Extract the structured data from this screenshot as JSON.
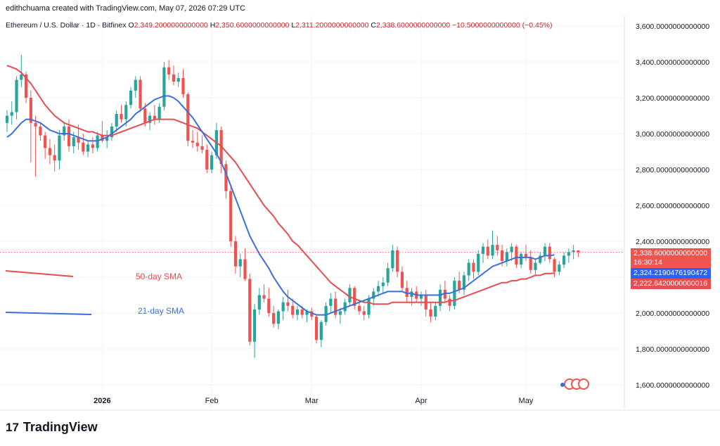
{
  "header": {
    "credit": "edithchuama created with TradingView.com, May 07, 2026 07:29 UTC",
    "symbol": "Ethereum / U.S. Dollar · 1D · Bitfinex",
    "o_label": "O",
    "o_value": "2,349.2000000000000",
    "h_label": "H",
    "h_value": "2,350.6000000000000",
    "l_label": "L",
    "l_value": "2,311.2000000000000",
    "c_label": "C",
    "c_value": "2,338.6000000000000",
    "change": "−10.5000000000000 (−0.45%)"
  },
  "annotations": {
    "sma50_label": "50-day SMA",
    "sma21_label": "21-day SMA"
  },
  "price_tags": {
    "last_price": "2,338.6000000000000",
    "countdown": "16:30:14",
    "sma21_value": "2,324.2190476190472",
    "sma50_value": "2,222.6420000000016"
  },
  "brand": {
    "logo": "17",
    "name": "TradingView"
  },
  "colors": {
    "up": "#26a69a",
    "down": "#ef5350",
    "sma21": "#3d6fd8",
    "sma50": "#e84b50",
    "axis_text": "#131722"
  },
  "chart_data": {
    "type": "candlestick",
    "ylim": [
      1560,
      3650
    ],
    "y_ticks": [
      "1,600.0000000000000",
      "1,800.0000000000000",
      "2,000.0000000000000",
      "2,200.0000000000000",
      "2,400.0000000000000",
      "2,600.0000000000000",
      "2,800.0000000000000",
      "3,000.0000000000000",
      "3,200.0000000000000",
      "3,400.0000000000000",
      "3,600.0000000000000"
    ],
    "x_ticks": [
      "2026",
      "Feb",
      "Mar",
      "Apr",
      "May"
    ],
    "candles": [
      [
        3060,
        3130,
        3010,
        3100
      ],
      [
        3100,
        3180,
        3050,
        3120
      ],
      [
        3120,
        3320,
        3080,
        3300
      ],
      [
        3300,
        3440,
        3260,
        3330
      ],
      [
        3330,
        3345,
        3170,
        3200
      ],
      [
        3200,
        3240,
        2840,
        3060
      ],
      [
        3060,
        3100,
        2760,
        3040
      ],
      [
        3040,
        3060,
        2960,
        2990
      ],
      [
        2990,
        3010,
        2860,
        2920
      ],
      [
        2920,
        2970,
        2830,
        2880
      ],
      [
        2880,
        2940,
        2790,
        2850
      ],
      [
        2850,
        3020,
        2800,
        2990
      ],
      [
        2990,
        3060,
        2960,
        3040
      ],
      [
        3040,
        3080,
        2900,
        2930
      ],
      [
        2930,
        3010,
        2890,
        2980
      ],
      [
        2980,
        3050,
        2910,
        2950
      ],
      [
        2950,
        3000,
        2880,
        2900
      ],
      [
        2900,
        2960,
        2870,
        2940
      ],
      [
        2940,
        2980,
        2890,
        2920
      ],
      [
        2920,
        3010,
        2900,
        2990
      ],
      [
        2990,
        3070,
        2950,
        2960
      ],
      [
        2960,
        3020,
        2920,
        2980
      ],
      [
        2980,
        3060,
        2960,
        3040
      ],
      [
        3040,
        3130,
        3010,
        3110
      ],
      [
        3110,
        3160,
        3060,
        3080
      ],
      [
        3080,
        3180,
        3040,
        3160
      ],
      [
        3160,
        3260,
        3140,
        3240
      ],
      [
        3240,
        3320,
        3200,
        3300
      ],
      [
        3300,
        3320,
        3120,
        3140
      ],
      [
        3140,
        3170,
        3040,
        3060
      ],
      [
        3060,
        3120,
        3020,
        3100
      ],
      [
        3100,
        3160,
        3050,
        3080
      ],
      [
        3080,
        3170,
        3060,
        3150
      ],
      [
        3150,
        3400,
        3130,
        3370
      ],
      [
        3370,
        3410,
        3300,
        3330
      ],
      [
        3330,
        3380,
        3270,
        3290
      ],
      [
        3290,
        3340,
        3260,
        3310
      ],
      [
        3310,
        3360,
        3200,
        3220
      ],
      [
        3220,
        3230,
        2930,
        2960
      ],
      [
        2960,
        3020,
        2920,
        2950
      ],
      [
        2950,
        3010,
        2900,
        2930
      ],
      [
        2930,
        2990,
        2890,
        2910
      ],
      [
        2910,
        2940,
        2780,
        2800
      ],
      [
        2800,
        2900,
        2780,
        2880
      ],
      [
        2880,
        3060,
        2860,
        3020
      ],
      [
        3020,
        3040,
        2780,
        2830
      ],
      [
        2830,
        2850,
        2640,
        2680
      ],
      [
        2680,
        2700,
        2370,
        2400
      ],
      [
        2400,
        2430,
        2220,
        2260
      ],
      [
        2260,
        2330,
        2200,
        2300
      ],
      [
        2300,
        2360,
        2180,
        2190
      ],
      [
        2190,
        2220,
        1820,
        1840
      ],
      [
        1840,
        2050,
        1750,
        2020
      ],
      [
        2020,
        2140,
        1990,
        2100
      ],
      [
        2100,
        2160,
        2060,
        2080
      ],
      [
        2080,
        2140,
        1980,
        2000
      ],
      [
        2000,
        2040,
        1920,
        1940
      ],
      [
        1940,
        2020,
        1910,
        2010
      ],
      [
        2010,
        2090,
        1960,
        2060
      ],
      [
        2060,
        2130,
        2010,
        2040
      ],
      [
        2040,
        2080,
        1970,
        1990
      ],
      [
        1990,
        2040,
        1960,
        2020
      ],
      [
        2020,
        2040,
        1970,
        1990
      ],
      [
        1990,
        2020,
        1950,
        2010
      ],
      [
        2010,
        2030,
        1960,
        1980
      ],
      [
        1980,
        1990,
        1830,
        1850
      ],
      [
        1850,
        1960,
        1810,
        1950
      ],
      [
        1950,
        2060,
        1930,
        2040
      ],
      [
        2040,
        2110,
        2000,
        2080
      ],
      [
        2080,
        2120,
        1970,
        1990
      ],
      [
        1990,
        2030,
        1940,
        2010
      ],
      [
        2010,
        2080,
        1990,
        2060
      ],
      [
        2060,
        2160,
        2040,
        2140
      ],
      [
        2140,
        2150,
        2020,
        2040
      ],
      [
        2040,
        2070,
        1990,
        2010
      ],
      [
        2010,
        2040,
        1960,
        1990
      ],
      [
        1990,
        2100,
        1970,
        2080
      ],
      [
        2080,
        2140,
        2040,
        2120
      ],
      [
        2120,
        2180,
        2090,
        2150
      ],
      [
        2150,
        2200,
        2110,
        2170
      ],
      [
        2170,
        2280,
        2150,
        2250
      ],
      [
        2250,
        2380,
        2230,
        2350
      ],
      [
        2350,
        2370,
        2200,
        2230
      ],
      [
        2230,
        2260,
        2120,
        2140
      ],
      [
        2140,
        2180,
        2060,
        2090
      ],
      [
        2090,
        2140,
        2040,
        2120
      ],
      [
        2120,
        2150,
        2060,
        2080
      ],
      [
        2080,
        2120,
        2040,
        2100
      ],
      [
        2100,
        2130,
        1980,
        2020
      ],
      [
        2020,
        2060,
        1950,
        1980
      ],
      [
        1980,
        2060,
        1960,
        2040
      ],
      [
        2040,
        2160,
        2010,
        2130
      ],
      [
        2130,
        2180,
        2060,
        2080
      ],
      [
        2080,
        2100,
        2010,
        2040
      ],
      [
        2040,
        2200,
        2020,
        2180
      ],
      [
        2180,
        2230,
        2110,
        2130
      ],
      [
        2130,
        2230,
        2100,
        2210
      ],
      [
        2210,
        2300,
        2180,
        2280
      ],
      [
        2280,
        2300,
        2190,
        2230
      ],
      [
        2230,
        2350,
        2210,
        2330
      ],
      [
        2330,
        2390,
        2280,
        2370
      ],
      [
        2370,
        2410,
        2300,
        2320
      ],
      [
        2320,
        2460,
        2300,
        2380
      ],
      [
        2380,
        2430,
        2320,
        2350
      ],
      [
        2350,
        2380,
        2260,
        2290
      ],
      [
        2290,
        2360,
        2260,
        2340
      ],
      [
        2340,
        2390,
        2290,
        2370
      ],
      [
        2370,
        2380,
        2250,
        2270
      ],
      [
        2270,
        2340,
        2250,
        2330
      ],
      [
        2330,
        2380,
        2290,
        2310
      ],
      [
        2310,
        2350,
        2220,
        2240
      ],
      [
        2240,
        2300,
        2210,
        2280
      ],
      [
        2280,
        2340,
        2270,
        2320
      ],
      [
        2320,
        2390,
        2290,
        2370
      ],
      [
        2370,
        2390,
        2280,
        2300
      ],
      [
        2300,
        2310,
        2200,
        2230
      ],
      [
        2230,
        2290,
        2210,
        2270
      ],
      [
        2270,
        2340,
        2250,
        2320
      ],
      [
        2320,
        2360,
        2280,
        2340
      ],
      [
        2340,
        2380,
        2300,
        2350
      ],
      [
        2349.2,
        2350.6,
        2311.2,
        2338.6
      ]
    ],
    "series": [
      {
        "name": "50-day SMA",
        "color": "#e84b50",
        "values": [
          3380,
          3370,
          3360,
          3340,
          3310,
          3280,
          3240,
          3200,
          3160,
          3130,
          3100,
          3080,
          3060,
          3050,
          3040,
          3030,
          3020,
          3010,
          3010,
          3000,
          2990,
          2990,
          2990,
          3000,
          3010,
          3020,
          3030,
          3040,
          3050,
          3060,
          3070,
          3080,
          3080,
          3080,
          3080,
          3080,
          3070,
          3060,
          3050,
          3040,
          3030,
          3010,
          2990,
          2970,
          2950,
          2930,
          2900,
          2870,
          2840,
          2800,
          2760,
          2720,
          2680,
          2640,
          2600,
          2570,
          2540,
          2500,
          2470,
          2440,
          2400,
          2380,
          2350,
          2320,
          2290,
          2260,
          2230,
          2200,
          2170,
          2150,
          2130,
          2110,
          2090,
          2080,
          2070,
          2060,
          2060,
          2050,
          2050,
          2050,
          2050,
          2060,
          2060,
          2060,
          2060,
          2060,
          2060,
          2060,
          2060,
          2060,
          2060,
          2060,
          2060,
          2070,
          2070,
          2080,
          2090,
          2100,
          2110,
          2120,
          2130,
          2140,
          2150,
          2160,
          2170,
          2170,
          2180,
          2180,
          2190,
          2190,
          2200,
          2210,
          2210,
          2220,
          2220,
          2222.64
        ]
      },
      {
        "name": "21-day SMA",
        "color": "#3d6fd8",
        "values": [
          2980,
          3000,
          3030,
          3060,
          3080,
          3080,
          3070,
          3060,
          3040,
          3020,
          3010,
          3000,
          3000,
          3000,
          2990,
          2980,
          2970,
          2960,
          2960,
          2960,
          2970,
          2980,
          3000,
          3020,
          3040,
          3060,
          3080,
          3110,
          3130,
          3150,
          3170,
          3190,
          3200,
          3210,
          3210,
          3200,
          3180,
          3150,
          3120,
          3090,
          3050,
          3010,
          2970,
          2930,
          2890,
          2840,
          2780,
          2710,
          2640,
          2570,
          2500,
          2430,
          2380,
          2330,
          2290,
          2250,
          2200,
          2160,
          2120,
          2090,
          2070,
          2050,
          2030,
          2010,
          2000,
          1990,
          1990,
          1990,
          2000,
          2010,
          2020,
          2030,
          2040,
          2050,
          2060,
          2070,
          2080,
          2090,
          2100,
          2110,
          2120,
          2120,
          2120,
          2120,
          2110,
          2110,
          2100,
          2100,
          2100,
          2100,
          2100,
          2100,
          2110,
          2110,
          2120,
          2130,
          2140,
          2160,
          2180,
          2200,
          2220,
          2240,
          2260,
          2270,
          2280,
          2290,
          2300,
          2310,
          2310,
          2310,
          2310,
          2300,
          2310,
          2320,
          2320,
          2324.22
        ]
      }
    ]
  }
}
